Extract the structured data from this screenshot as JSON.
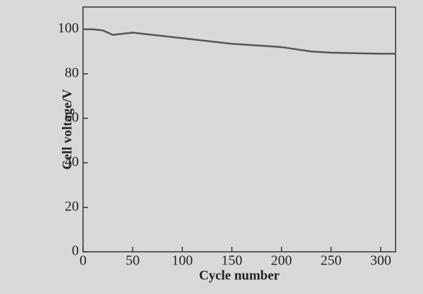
{
  "chart_data": {
    "type": "line",
    "xlabel": "Cycle number",
    "ylabel": "Cell voltage/V",
    "x": [
      0,
      10,
      20,
      30,
      40,
      50,
      60,
      80,
      100,
      120,
      150,
      200,
      230,
      250,
      300,
      315
    ],
    "series": [
      {
        "name": "Cell voltage",
        "color": "#555555",
        "values": [
          100,
          100,
          99.5,
          97.5,
          98,
          98.5,
          98,
          97,
          96,
          95,
          93.5,
          92,
          90,
          89.5,
          89,
          89
        ]
      }
    ],
    "xlim": [
      0,
      315
    ],
    "xticks": [
      0,
      50,
      100,
      150,
      200,
      250,
      300
    ],
    "ylim": [
      0,
      110
    ],
    "yticks": [
      0,
      20,
      40,
      60,
      80,
      100
    ],
    "grid": false
  }
}
